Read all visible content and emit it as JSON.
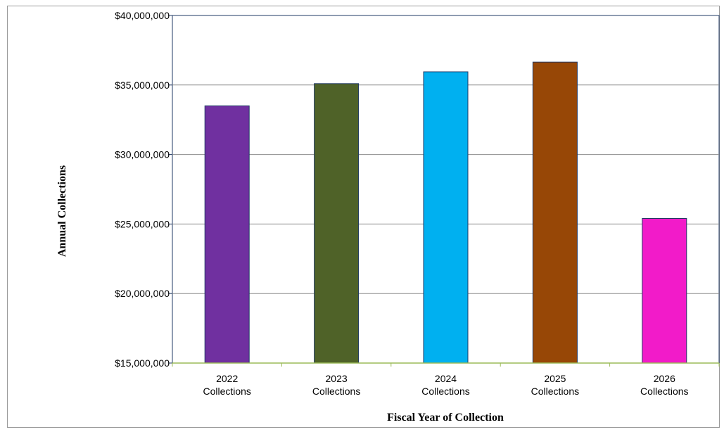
{
  "chart_data": {
    "type": "bar",
    "title": "",
    "xlabel": "Fiscal Year of Collection",
    "ylabel": "Annual Collections",
    "categories": [
      [
        "2022",
        "Collections"
      ],
      [
        "2023",
        "Collections"
      ],
      [
        "2024",
        "Collections"
      ],
      [
        "2025",
        "Collections"
      ],
      [
        "2026",
        "Collections"
      ]
    ],
    "values": [
      33500000,
      35100000,
      35950000,
      36650000,
      25400000
    ],
    "colors": [
      "#7030A0",
      "#4F6228",
      "#00B0F0",
      "#974706",
      "#F21BC9"
    ],
    "ylim": [
      15000000,
      40000000
    ],
    "yticks": [
      15000000,
      20000000,
      25000000,
      30000000,
      35000000,
      40000000
    ],
    "ytick_labels": [
      "$15,000,000",
      "$20,000,000",
      "$25,000,000",
      "$30,000,000",
      "$35,000,000",
      "$40,000,000"
    ],
    "grid": true,
    "legend": "none"
  }
}
